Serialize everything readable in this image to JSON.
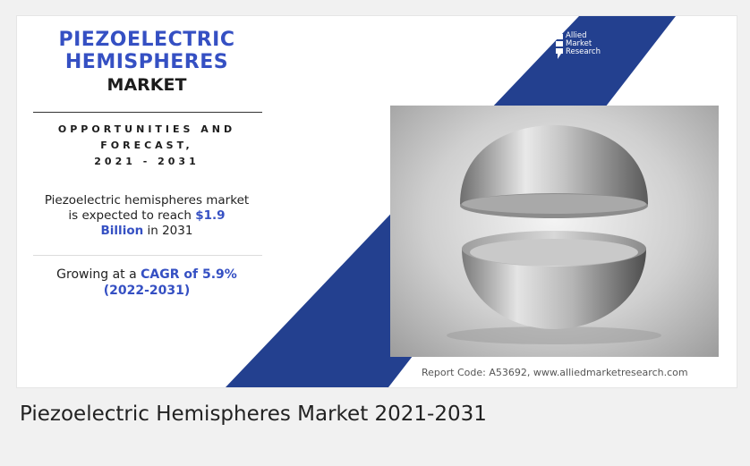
{
  "infographic": {
    "title_line1": "PIEZOELECTRIC",
    "title_line2": "HEMISPHERES",
    "title_line3": "MARKET",
    "opportunities_line1": "OPPORTUNITIES AND",
    "opportunities_line2": "FORECAST,",
    "opportunities_line3": "2021 - 2031",
    "market_text_1": "Piezoelectric hemispheres market",
    "market_text_2": "is expected to reach",
    "market_value": "$1.9",
    "market_unit": "Billion",
    "market_year": "in 2031",
    "growth_text": "Growing at a",
    "cagr_text": "CAGR of 5.9%",
    "cagr_period": "(2022-2031)",
    "logo_line1": "Allied",
    "logo_line2": "Market",
    "logo_line3": "Research",
    "report_code": "Report Code: A53692, www.alliedmarketresearch.com",
    "colors": {
      "accent_blue": "#3550c3",
      "stripe_blue": "#23408f"
    }
  },
  "caption": "Piezoelectric Hemispheres Market 2021-2031"
}
